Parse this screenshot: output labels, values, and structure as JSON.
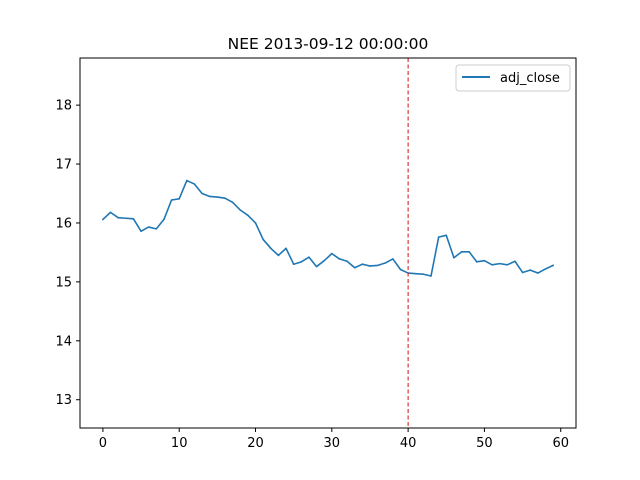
{
  "chart_data": {
    "type": "line",
    "title": "NEE 2013-09-12 00:00:00",
    "xlabel": "",
    "ylabel": "",
    "xlim": [
      -3,
      62
    ],
    "ylim": [
      12.52,
      18.8
    ],
    "xticks": [
      0,
      10,
      20,
      30,
      40,
      50,
      60
    ],
    "yticks": [
      13,
      14,
      15,
      16,
      17,
      18
    ],
    "grid": false,
    "legend_position": "top-right",
    "series": [
      {
        "name": "adj_close",
        "color": "#1f77b4",
        "x": [
          0,
          1,
          2,
          3,
          4,
          5,
          6,
          7,
          8,
          9,
          10,
          11,
          12,
          13,
          14,
          15,
          16,
          17,
          18,
          19,
          20,
          21,
          22,
          23,
          24,
          25,
          26,
          27,
          28,
          29,
          30,
          31,
          32,
          33,
          34,
          35,
          36,
          37,
          38,
          39,
          40,
          41,
          42,
          43,
          44,
          45,
          46,
          47,
          48,
          49,
          50,
          51,
          52,
          53,
          54,
          55,
          56,
          57,
          58,
          59
        ],
        "values": [
          16.06,
          16.18,
          16.09,
          16.08,
          16.07,
          15.86,
          15.93,
          15.9,
          16.06,
          16.39,
          16.41,
          16.72,
          16.66,
          16.5,
          16.45,
          16.44,
          16.42,
          16.35,
          16.22,
          16.13,
          16.0,
          15.72,
          15.57,
          15.45,
          15.57,
          15.3,
          15.34,
          15.42,
          15.26,
          15.36,
          15.48,
          15.39,
          15.35,
          15.24,
          15.3,
          15.27,
          15.28,
          15.32,
          15.39,
          15.21,
          15.15,
          15.14,
          15.13,
          15.1,
          15.76,
          15.79,
          15.41,
          15.51,
          15.51,
          15.34,
          15.36,
          15.29,
          15.31,
          15.29,
          15.35,
          15.16,
          15.2,
          15.15,
          15.22,
          15.28
        ]
      }
    ],
    "annotations": [
      {
        "type": "vline",
        "x": 40,
        "color": "#d62728",
        "style": "dashed"
      }
    ]
  }
}
